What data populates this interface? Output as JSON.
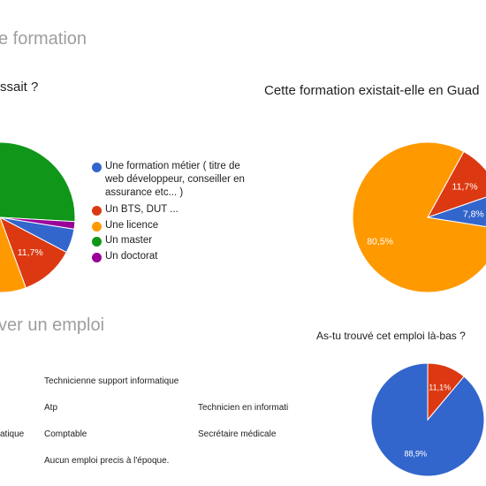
{
  "sections": {
    "top_title": "e formation",
    "bottom_title": "ver un emploi"
  },
  "questions": {
    "q1": "ssait ?",
    "q2": "Cette formation existait-elle en Guad",
    "q3": "As-tu trouvé cet emploi là-bas ?"
  },
  "responses": {
    "col1": [
      "Technicienne support informatique",
      "Atp",
      "Comptable",
      "Aucun emploi precis à l'époque."
    ],
    "col2": [
      "Technicien en informati",
      "Secrétaire médicale"
    ],
    "col0": [
      "atique"
    ]
  },
  "chart_data": [
    {
      "type": "pie",
      "title": "ssait ?",
      "legend_position": "right",
      "series": [
        {
          "name": "Une formation métier ( titre de web développeur, conseiller en assurance etc... )",
          "value": 5.2,
          "label": "",
          "color": "#3366cc"
        },
        {
          "name": "Un BTS, DUT ...",
          "value": 11.7,
          "label": "11,7%",
          "color": "#dc3912"
        },
        {
          "name": "Une licence",
          "value": 18,
          "label": "",
          "color": "#ff9900"
        },
        {
          "name": "Un master",
          "value": 63.5,
          "label": "%",
          "color": "#109618"
        },
        {
          "name": "Un doctorat",
          "value": 1.6,
          "label": "",
          "color": "#990099"
        }
      ]
    },
    {
      "type": "pie",
      "title": "Cette formation existait-elle en Guad",
      "series": [
        {
          "value": 80.5,
          "label": "80,5%",
          "color": "#ff9900"
        },
        {
          "value": 11.7,
          "label": "11,7%",
          "color": "#dc3912"
        },
        {
          "value": 7.8,
          "label": "7,8%",
          "color": "#3366cc"
        }
      ]
    },
    {
      "type": "pie",
      "title": "As-tu trouvé cet emploi là-bas ?",
      "series": [
        {
          "value": 88.9,
          "label": "88,9%",
          "color": "#3366cc"
        },
        {
          "value": 11.1,
          "label": "11,1%",
          "color": "#dc3912"
        }
      ]
    }
  ]
}
